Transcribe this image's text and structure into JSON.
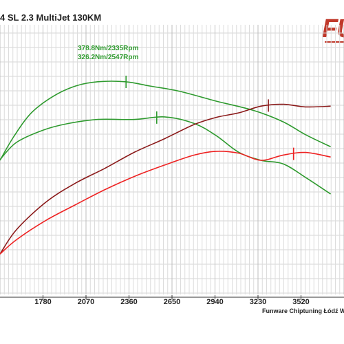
{
  "header": {
    "title": "4 SL 2.3 MultiJet 130KM",
    "logo_text": "FU"
  },
  "footer": {
    "credit": "Funware Chiptuning Łódź W"
  },
  "chart_data": {
    "type": "line",
    "xlim": [
      1490,
      3810
    ],
    "ylim": [
      0,
      1
    ],
    "x_ticks": [
      "1780",
      "2070",
      "2360",
      "2650",
      "2940",
      "3230",
      "3520"
    ],
    "grid": true,
    "annotations": [
      "378.8Nm/2335Rpm",
      "326.2Nm/2547Rpm"
    ],
    "series": [
      {
        "color": "#2e9a2e",
        "x": [
          1490,
          1580,
          1700,
          1850,
          2000,
          2150,
          2335,
          2500,
          2700,
          2950,
          3200,
          3400,
          3550,
          3720
        ],
        "y": [
          0.687,
          0.784,
          0.886,
          0.957,
          1.0,
          1.018,
          1.018,
          1.0,
          0.978,
          0.936,
          0.897,
          0.849,
          0.795,
          0.744
        ],
        "markers": [
          2340
        ]
      },
      {
        "color": "#2e9a2e",
        "x": [
          1490,
          1600,
          1780,
          1950,
          2150,
          2400,
          2600,
          2800,
          2950,
          3100,
          3250,
          3400,
          3550,
          3720
        ],
        "y": [
          0.69,
          0.762,
          0.814,
          0.842,
          0.859,
          0.859,
          0.87,
          0.842,
          0.79,
          0.721,
          0.687,
          0.672,
          0.615,
          0.545
        ],
        "markers": [
          2547
        ]
      },
      {
        "color": "#8b1a1a",
        "x": [
          1490,
          1600,
          1800,
          2000,
          2200,
          2400,
          2600,
          2800,
          2950,
          3100,
          3250,
          3400,
          3550,
          3720
        ],
        "y": [
          0.292,
          0.394,
          0.511,
          0.591,
          0.654,
          0.722,
          0.778,
          0.838,
          0.868,
          0.887,
          0.915,
          0.923,
          0.912,
          0.915
        ],
        "markers": [
          3300
        ]
      },
      {
        "color": "#ee2222",
        "x": [
          1490,
          1600,
          1800,
          2000,
          2200,
          2400,
          2600,
          2800,
          2950,
          3100,
          3250,
          3400,
          3550,
          3720
        ],
        "y": [
          0.292,
          0.352,
          0.434,
          0.5,
          0.564,
          0.62,
          0.667,
          0.709,
          0.725,
          0.717,
          0.687,
          0.709,
          0.72,
          0.701
        ],
        "markers": [
          3470
        ]
      }
    ]
  }
}
